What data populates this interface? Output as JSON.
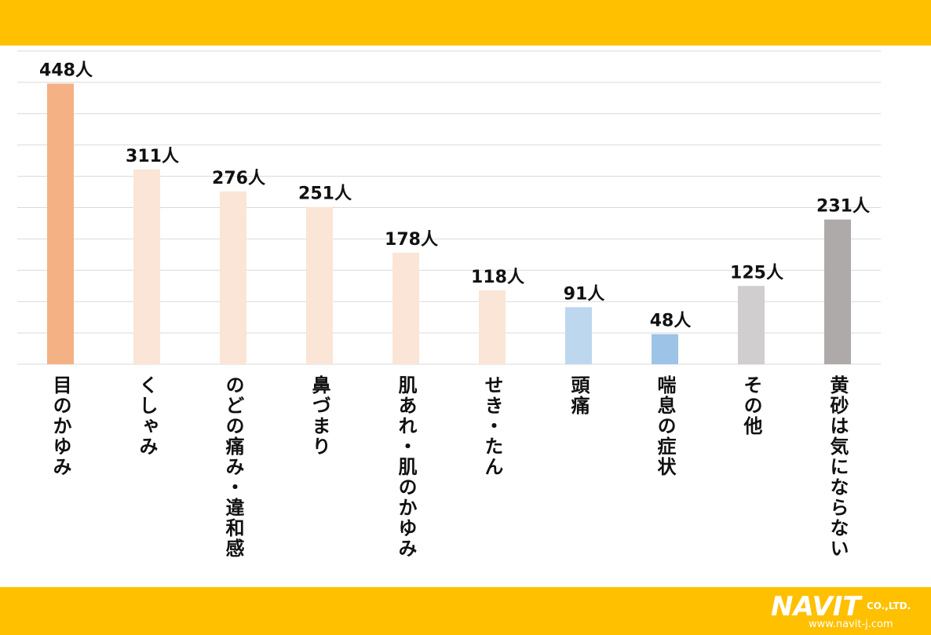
{
  "chart_data": {
    "type": "bar",
    "categories": [
      "目のかゆみ",
      "くしゃみ",
      "のどの痛み・違和感",
      "鼻づまり",
      "肌あれ・肌のかゆみ",
      "せき・たん",
      "頭痛",
      "喘息の症状",
      "その他",
      "黄砂は気にならない"
    ],
    "values": [
      448,
      311,
      276,
      251,
      178,
      118,
      91,
      48,
      125,
      231
    ],
    "value_labels": [
      "448人",
      "311人",
      "276人",
      "251人",
      "178人",
      "118人",
      "91人",
      "48人",
      "125人",
      "231人"
    ],
    "colors": [
      "#f4b183",
      "#fbe5d6",
      "#fbe5d6",
      "#fbe5d6",
      "#fbe5d6",
      "#fbe5d6",
      "#bdd7ee",
      "#9dc3e6",
      "#d0cece",
      "#aeaaaa"
    ],
    "ylim": [
      0,
      500
    ],
    "yticks": [
      0,
      50,
      100,
      150,
      200,
      250,
      300,
      350,
      400,
      450,
      500
    ],
    "grid": true
  },
  "logo": {
    "name": "NAVIT",
    "suffix": "CO.,LTD.",
    "url": "www.navit-j.com"
  }
}
